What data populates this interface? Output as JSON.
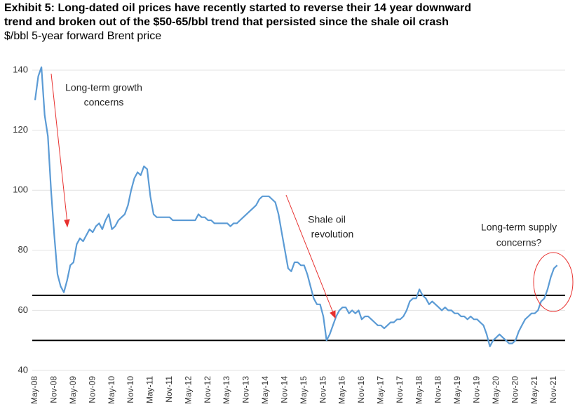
{
  "chart_data": {
    "type": "line",
    "title": [
      "Exhibit 5: Long-dated oil prices have recently started to reverse their 14 year downward",
      "trend and broken out of the $50-65/bbl trend that persisted since the shale oil crash"
    ],
    "subtitle": "$/bbl 5-year forward Brent price",
    "x": [
      "May-08",
      "Jun-08",
      "Jul-08",
      "Aug-08",
      "Sep-08",
      "Oct-08",
      "Nov-08",
      "Dec-08",
      "Jan-09",
      "Feb-09",
      "Mar-09",
      "Apr-09",
      "May-09",
      "Jun-09",
      "Jul-09",
      "Aug-09",
      "Sep-09",
      "Oct-09",
      "Nov-09",
      "Dec-09",
      "Jan-10",
      "Feb-10",
      "Mar-10",
      "Apr-10",
      "May-10",
      "Jun-10",
      "Jul-10",
      "Aug-10",
      "Sep-10",
      "Oct-10",
      "Nov-10",
      "Dec-10",
      "Jan-11",
      "Feb-11",
      "Mar-11",
      "Apr-11",
      "May-11",
      "Jun-11",
      "Jul-11",
      "Aug-11",
      "Sep-11",
      "Oct-11",
      "Nov-11",
      "Dec-11",
      "Jan-12",
      "Feb-12",
      "Mar-12",
      "Apr-12",
      "May-12",
      "Jun-12",
      "Jul-12",
      "Aug-12",
      "Sep-12",
      "Oct-12",
      "Nov-12",
      "Dec-12",
      "Jan-13",
      "Feb-13",
      "Mar-13",
      "Apr-13",
      "May-13",
      "Jun-13",
      "Jul-13",
      "Aug-13",
      "Sep-13",
      "Oct-13",
      "Nov-13",
      "Dec-13",
      "Jan-14",
      "Feb-14",
      "Mar-14",
      "Apr-14",
      "May-14",
      "Jun-14",
      "Jul-14",
      "Aug-14",
      "Sep-14",
      "Oct-14",
      "Nov-14",
      "Dec-14",
      "Jan-15",
      "Feb-15",
      "Mar-15",
      "Apr-15",
      "May-15",
      "Jun-15",
      "Jul-15",
      "Aug-15",
      "Sep-15",
      "Oct-15",
      "Nov-15",
      "Dec-15",
      "Jan-16",
      "Feb-16",
      "Mar-16",
      "Apr-16",
      "May-16",
      "Jun-16",
      "Jul-16",
      "Aug-16",
      "Sep-16",
      "Oct-16",
      "Nov-16",
      "Dec-16",
      "Jan-17",
      "Feb-17",
      "Mar-17",
      "Apr-17",
      "May-17",
      "Jun-17",
      "Jul-17",
      "Aug-17",
      "Sep-17",
      "Oct-17",
      "Nov-17",
      "Dec-17",
      "Jan-18",
      "Feb-18",
      "Mar-18",
      "Apr-18",
      "May-18",
      "Jun-18",
      "Jul-18",
      "Aug-18",
      "Sep-18",
      "Oct-18",
      "Nov-18",
      "Dec-18",
      "Jan-19",
      "Feb-19",
      "Mar-19",
      "Apr-19",
      "May-19",
      "Jun-19",
      "Jul-19",
      "Aug-19",
      "Sep-19",
      "Oct-19",
      "Nov-19",
      "Dec-19",
      "Jan-20",
      "Feb-20",
      "Mar-20",
      "Apr-20",
      "May-20",
      "Jun-20",
      "Jul-20",
      "Aug-20",
      "Sep-20",
      "Oct-20",
      "Nov-20",
      "Dec-20",
      "Jan-21",
      "Feb-21",
      "Mar-21",
      "Apr-21",
      "May-21",
      "Jun-21",
      "Jul-21",
      "Aug-21",
      "Sep-21",
      "Oct-21",
      "Nov-21",
      "Dec-21"
    ],
    "series": [
      {
        "color": "#5b9bd5",
        "values": [
          130,
          138,
          141,
          125,
          118,
          100,
          85,
          72,
          68,
          66,
          70,
          75,
          76,
          82,
          84,
          83,
          85,
          87,
          86,
          88,
          89,
          87,
          90,
          92,
          87,
          88,
          90,
          91,
          92,
          95,
          100,
          104,
          106,
          105,
          108,
          107,
          98,
          92,
          91,
          91,
          91,
          91,
          91,
          90,
          90,
          90,
          90,
          90,
          90,
          90,
          90,
          92,
          91,
          91,
          90,
          90,
          89,
          89,
          89,
          89,
          89,
          88,
          89,
          89,
          90,
          91,
          92,
          93,
          94,
          95,
          97,
          98,
          98,
          98,
          97,
          96,
          92,
          86,
          80,
          74,
          73,
          76,
          76,
          75,
          75,
          72,
          68,
          64,
          62,
          62,
          58,
          50,
          52,
          55,
          58,
          60,
          61,
          61,
          59,
          60,
          59,
          60,
          57,
          58,
          58,
          57,
          56,
          55,
          55,
          54,
          55,
          56,
          56,
          57,
          57,
          58,
          60,
          63,
          64,
          64,
          67,
          65,
          64,
          62,
          63,
          62,
          61,
          60,
          61,
          60,
          60,
          59,
          59,
          58,
          58,
          57,
          58,
          57,
          57,
          56,
          55,
          52,
          48,
          50,
          51,
          52,
          51,
          50,
          49,
          49,
          50,
          53,
          55,
          57,
          58,
          59,
          59,
          60,
          63,
          64,
          67,
          71,
          74,
          75
        ]
      }
    ],
    "xticks": [
      "May-08",
      "Nov-08",
      "May-09",
      "Nov-09",
      "May-10",
      "Nov-10",
      "May-11",
      "Nov-11",
      "May-12",
      "Nov-12",
      "May-13",
      "Nov-13",
      "May-14",
      "Nov-14",
      "May-15",
      "Nov-15",
      "May-16",
      "Nov-16",
      "May-17",
      "Nov-17",
      "May-18",
      "Nov-18",
      "May-19",
      "Nov-19",
      "May-20",
      "Nov-20",
      "May-21",
      "Nov-21"
    ],
    "ylim": [
      40,
      140
    ],
    "yticks": [
      40,
      60,
      80,
      100,
      120,
      140
    ],
    "grid": true,
    "hlines": [
      65,
      50
    ],
    "annotations": [
      [
        "Long-term growth",
        "concerns"
      ],
      [
        "Shale oil",
        "revolution"
      ],
      [
        "Long-term supply",
        "concerns?"
      ]
    ]
  }
}
